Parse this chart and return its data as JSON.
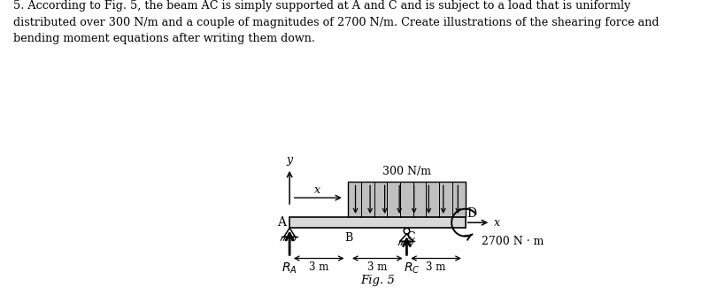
{
  "text_title": "5. According to Fig. 5, the beam AC is simply supported at A and C and is subject to a load that is uniformly\ndistributed over 300 N/m and a couple of magnitudes of 2700 N/m. Create illustrations of the shearing force and\nbending moment equations after writing them down.",
  "fig_label": "Fig. 5",
  "load_label": "300 N/m",
  "moment_label": "2700 N · m",
  "label_A": "A",
  "label_B": "B",
  "label_C": "C",
  "label_D": "D",
  "label_RA": "$R_A$",
  "label_RC": "$R_C$",
  "label_x_arrow": "x",
  "label_y": "y",
  "label_x_axis": "x",
  "bg_color": "#ffffff",
  "text_color": "#000000",
  "dim_labels": [
    "3 m",
    "3 m",
    "3 m"
  ]
}
